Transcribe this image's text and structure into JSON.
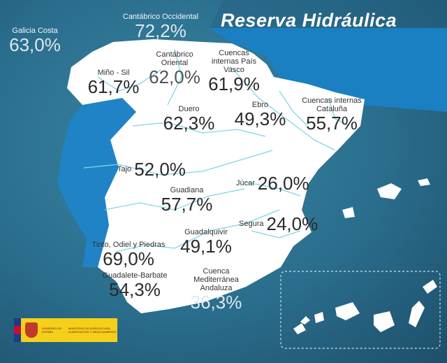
{
  "title": "Reserva Hidráulica",
  "colors": {
    "background": "#2a6d8c",
    "sea": "#1a80c2",
    "land": "#ffffff",
    "portugal": "#1f83c6",
    "rivers": "#7fd6e6"
  },
  "basins": [
    {
      "name": "Galicia Costa",
      "value": "63,0%"
    },
    {
      "name": "Cantábrico Occidental",
      "value": "72,2%"
    },
    {
      "name": "Cantábrico Oriental",
      "value": "62,0%"
    },
    {
      "name": "Cuencas internas País Vasco",
      "value": "61,9%"
    },
    {
      "name": "Miño - Sil",
      "value": "61,7%"
    },
    {
      "name": "Duero",
      "value": "62,3%"
    },
    {
      "name": "Ebro",
      "value": "49,3%"
    },
    {
      "name": "Cuencas internas Cataluña",
      "value": "55,7%"
    },
    {
      "name": "Tajo",
      "value": "52,0%"
    },
    {
      "name": "Júcar",
      "value": "26,0%"
    },
    {
      "name": "Guadiana",
      "value": "57,7%"
    },
    {
      "name": "Segura",
      "value": "24,0%"
    },
    {
      "name": "Guadalquivir",
      "value": "49,1%"
    },
    {
      "name": "Tinto, Odiel y Piedras",
      "value": "69,0%"
    },
    {
      "name": "Guadalete-Barbate",
      "value": "54,3%"
    },
    {
      "name": "Cuenca Mediterránea Andaluza",
      "value": "36,3%"
    }
  ],
  "logo": {
    "left": "GOBIERNO DE ESPAÑA",
    "right": "MINISTERIO DE AGRICULTURA, ALIMENTACIÓN Y MEDIO AMBIENTE"
  }
}
